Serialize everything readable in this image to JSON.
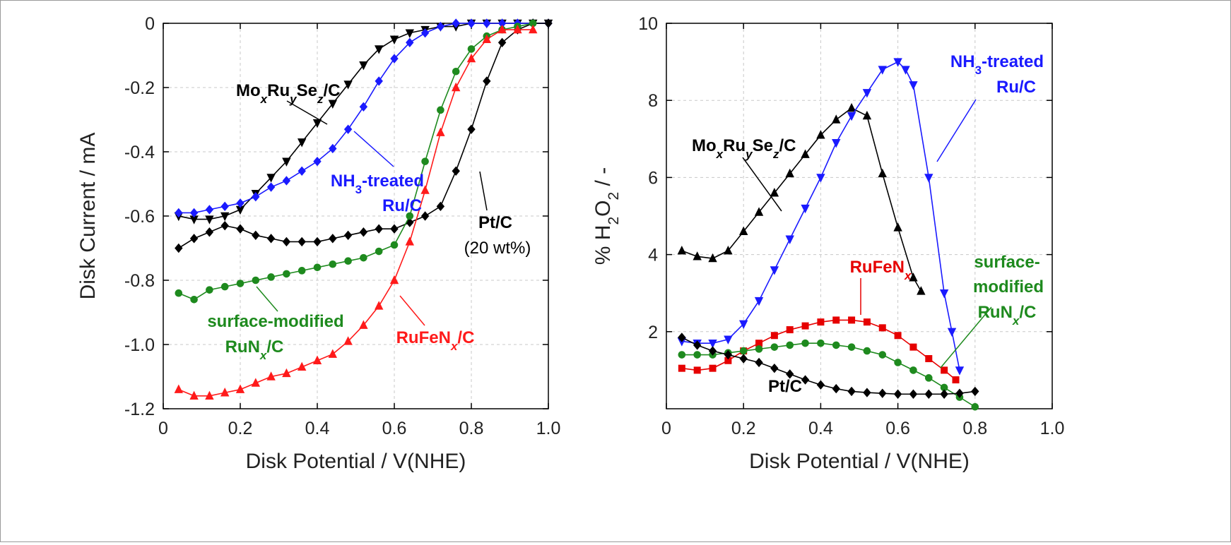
{
  "chart_data": [
    {
      "type": "line",
      "xlabel": "Disk Potential / V(NHE)",
      "ylabel": "Disk Current / mA",
      "xlim": [
        0,
        1.0
      ],
      "ylim": [
        -1.2,
        0
      ],
      "xticks": [
        "0",
        "0.2",
        "0.4",
        "0.6",
        "0.8",
        "1.0"
      ],
      "yticks": [
        "0",
        "-0.2",
        "-0.4",
        "-0.6",
        "-0.8",
        "-1.0",
        "-1.2"
      ],
      "grid": true,
      "series": [
        {
          "label": "MoRuSe/C",
          "color": "#000000",
          "marker": "triangle-down",
          "x": [
            0.04,
            0.08,
            0.12,
            0.16,
            0.2,
            0.24,
            0.28,
            0.32,
            0.36,
            0.4,
            0.44,
            0.48,
            0.52,
            0.56,
            0.6,
            0.64,
            0.68,
            0.72,
            0.76,
            0.8,
            0.84,
            0.88,
            0.92,
            0.96,
            1.0
          ],
          "y": [
            -0.6,
            -0.61,
            -0.61,
            -0.6,
            -0.58,
            -0.53,
            -0.48,
            -0.43,
            -0.37,
            -0.31,
            -0.25,
            -0.19,
            -0.13,
            -0.08,
            -0.05,
            -0.03,
            -0.02,
            -0.01,
            -0.01,
            0,
            0,
            0,
            0,
            0,
            0
          ]
        },
        {
          "label": "NH3-treated Ru/C",
          "color": "#1a1aff",
          "marker": "diamond",
          "x": [
            0.04,
            0.08,
            0.12,
            0.16,
            0.2,
            0.24,
            0.28,
            0.32,
            0.36,
            0.4,
            0.44,
            0.48,
            0.52,
            0.56,
            0.6,
            0.64,
            0.68,
            0.72,
            0.76,
            0.8,
            0.84,
            0.88,
            0.92,
            0.96,
            1.0
          ],
          "y": [
            -0.59,
            -0.59,
            -0.58,
            -0.57,
            -0.56,
            -0.54,
            -0.51,
            -0.49,
            -0.46,
            -0.43,
            -0.39,
            -0.33,
            -0.26,
            -0.18,
            -0.11,
            -0.06,
            -0.03,
            -0.01,
            0,
            0,
            0,
            0,
            0,
            0,
            0
          ]
        },
        {
          "label": "Pt/C",
          "color": "#000000",
          "marker": "diamond",
          "x": [
            0.04,
            0.08,
            0.12,
            0.16,
            0.2,
            0.24,
            0.28,
            0.32,
            0.36,
            0.4,
            0.44,
            0.48,
            0.52,
            0.56,
            0.6,
            0.64,
            0.68,
            0.72,
            0.76,
            0.8,
            0.84,
            0.88,
            0.92,
            0.96,
            1.0
          ],
          "y": [
            -0.7,
            -0.67,
            -0.65,
            -0.63,
            -0.64,
            -0.66,
            -0.67,
            -0.68,
            -0.68,
            -0.68,
            -0.67,
            -0.66,
            -0.65,
            -0.64,
            -0.64,
            -0.62,
            -0.6,
            -0.57,
            -0.46,
            -0.33,
            -0.18,
            -0.06,
            -0.02,
            0,
            0
          ]
        },
        {
          "label": "surface-modified RuNx/C",
          "color": "#1e8a1e",
          "marker": "circle",
          "x": [
            0.04,
            0.08,
            0.12,
            0.16,
            0.2,
            0.24,
            0.28,
            0.32,
            0.36,
            0.4,
            0.44,
            0.48,
            0.52,
            0.56,
            0.6,
            0.64,
            0.68,
            0.72,
            0.76,
            0.8,
            0.84,
            0.88,
            0.92,
            0.96
          ],
          "y": [
            -0.84,
            -0.86,
            -0.83,
            -0.82,
            -0.81,
            -0.8,
            -0.79,
            -0.78,
            -0.77,
            -0.76,
            -0.75,
            -0.74,
            -0.73,
            -0.71,
            -0.69,
            -0.6,
            -0.43,
            -0.27,
            -0.15,
            -0.08,
            -0.04,
            -0.02,
            -0.01,
            0
          ]
        },
        {
          "label": "RuFeNx/C",
          "color": "#ff1a1a",
          "marker": "triangle-up",
          "x": [
            0.04,
            0.08,
            0.12,
            0.16,
            0.2,
            0.24,
            0.28,
            0.32,
            0.36,
            0.4,
            0.44,
            0.48,
            0.52,
            0.56,
            0.6,
            0.64,
            0.68,
            0.72,
            0.76,
            0.8,
            0.84,
            0.88,
            0.92,
            0.96
          ],
          "y": [
            -1.14,
            -1.16,
            -1.16,
            -1.15,
            -1.14,
            -1.12,
            -1.1,
            -1.09,
            -1.07,
            -1.05,
            -1.03,
            -0.99,
            -0.94,
            -0.88,
            -0.8,
            -0.68,
            -0.52,
            -0.34,
            -0.2,
            -0.11,
            -0.05,
            -0.02,
            -0.02,
            -0.02
          ]
        }
      ],
      "annotations": [
        {
          "id": "moruse",
          "base": [
            "Mo",
            "x",
            "Ru",
            "y",
            "Se",
            "z",
            "/C"
          ],
          "color": "#000000"
        },
        {
          "id": "nh3",
          "lines": [
            "NH3-treated",
            "Ru/C"
          ],
          "color": "#1a1aff"
        },
        {
          "id": "pt",
          "lines": [
            "Pt/C",
            "(20 wt%)"
          ],
          "color": "#000000"
        },
        {
          "id": "surf",
          "lines": [
            "surface-modified",
            "RuNx/C"
          ],
          "color": "#1e8a1e"
        },
        {
          "id": "rufe",
          "lines": [
            "RuFeNx/C"
          ],
          "color": "#ff1a1a"
        }
      ]
    },
    {
      "type": "line",
      "xlabel": "Disk Potential / V(NHE)",
      "ylabel": "% H2O2 / -",
      "xlim": [
        0,
        1.0
      ],
      "ylim": [
        0,
        10
      ],
      "xticks": [
        "0",
        "0.2",
        "0.4",
        "0.6",
        "0.8",
        "1.0"
      ],
      "yticks": [
        "2",
        "4",
        "6",
        "8",
        "10"
      ],
      "grid": true,
      "series": [
        {
          "label": "MoRuSe/C",
          "color": "#000000",
          "marker": "triangle-up",
          "x": [
            0.04,
            0.08,
            0.12,
            0.16,
            0.2,
            0.24,
            0.28,
            0.32,
            0.36,
            0.4,
            0.44,
            0.48,
            0.52,
            0.56,
            0.6,
            0.64,
            0.66
          ],
          "y": [
            4.1,
            3.95,
            3.9,
            4.1,
            4.6,
            5.1,
            5.6,
            6.1,
            6.6,
            7.1,
            7.5,
            7.8,
            7.6,
            6.1,
            4.7,
            3.4,
            3.05
          ]
        },
        {
          "label": "NH3-treated Ru/C",
          "color": "#1a1aff",
          "marker": "triangle-down",
          "x": [
            0.04,
            0.08,
            0.12,
            0.16,
            0.2,
            0.24,
            0.28,
            0.32,
            0.36,
            0.4,
            0.44,
            0.48,
            0.52,
            0.56,
            0.6,
            0.62,
            0.64,
            0.68,
            0.72,
            0.74,
            0.76
          ],
          "y": [
            1.75,
            1.7,
            1.7,
            1.8,
            2.2,
            2.8,
            3.6,
            4.4,
            5.2,
            6.0,
            6.9,
            7.6,
            8.2,
            8.8,
            9.0,
            8.8,
            8.4,
            6.0,
            3.0,
            2.0,
            1.0
          ]
        },
        {
          "label": "RuFeNx",
          "color": "#e60000",
          "marker": "square",
          "x": [
            0.04,
            0.08,
            0.12,
            0.16,
            0.2,
            0.24,
            0.28,
            0.32,
            0.36,
            0.4,
            0.44,
            0.48,
            0.52,
            0.56,
            0.6,
            0.64,
            0.68,
            0.72,
            0.75
          ],
          "y": [
            1.05,
            1.0,
            1.05,
            1.25,
            1.5,
            1.7,
            1.9,
            2.05,
            2.15,
            2.25,
            2.3,
            2.3,
            2.25,
            2.1,
            1.9,
            1.6,
            1.3,
            1.0,
            0.75
          ]
        },
        {
          "label": "surface-modified RuNx/C",
          "color": "#1e8a1e",
          "marker": "circle",
          "x": [
            0.04,
            0.08,
            0.12,
            0.16,
            0.2,
            0.24,
            0.28,
            0.32,
            0.36,
            0.4,
            0.44,
            0.48,
            0.52,
            0.56,
            0.6,
            0.64,
            0.68,
            0.72,
            0.76,
            0.8
          ],
          "y": [
            1.4,
            1.4,
            1.4,
            1.45,
            1.5,
            1.55,
            1.6,
            1.65,
            1.7,
            1.7,
            1.65,
            1.6,
            1.5,
            1.4,
            1.2,
            1.0,
            0.8,
            0.55,
            0.3,
            0.05
          ]
        },
        {
          "label": "Pt/C",
          "color": "#000000",
          "marker": "diamond",
          "x": [
            0.04,
            0.08,
            0.12,
            0.16,
            0.2,
            0.24,
            0.28,
            0.32,
            0.36,
            0.4,
            0.44,
            0.48,
            0.52,
            0.56,
            0.6,
            0.64,
            0.68,
            0.72,
            0.76,
            0.8
          ],
          "y": [
            1.85,
            1.65,
            1.5,
            1.4,
            1.3,
            1.2,
            1.05,
            0.9,
            0.75,
            0.62,
            0.52,
            0.45,
            0.42,
            0.4,
            0.38,
            0.38,
            0.38,
            0.38,
            0.4,
            0.45
          ]
        }
      ],
      "annotations": [
        {
          "id": "moruse2",
          "base": [
            "Mo",
            "x",
            "Ru",
            "y",
            "Se",
            "z",
            "/C"
          ],
          "color": "#000000"
        },
        {
          "id": "nh3b",
          "lines": [
            "NH3-treated",
            "Ru/C"
          ],
          "color": "#1a1aff"
        },
        {
          "id": "rufe2",
          "lines": [
            "RuFeNx"
          ],
          "color": "#e60000"
        },
        {
          "id": "surf2",
          "lines": [
            "surface-",
            "modified",
            "RuNx/C"
          ],
          "color": "#1e8a1e"
        },
        {
          "id": "pt2",
          "lines": [
            "Pt/C"
          ],
          "color": "#000000"
        }
      ]
    }
  ]
}
